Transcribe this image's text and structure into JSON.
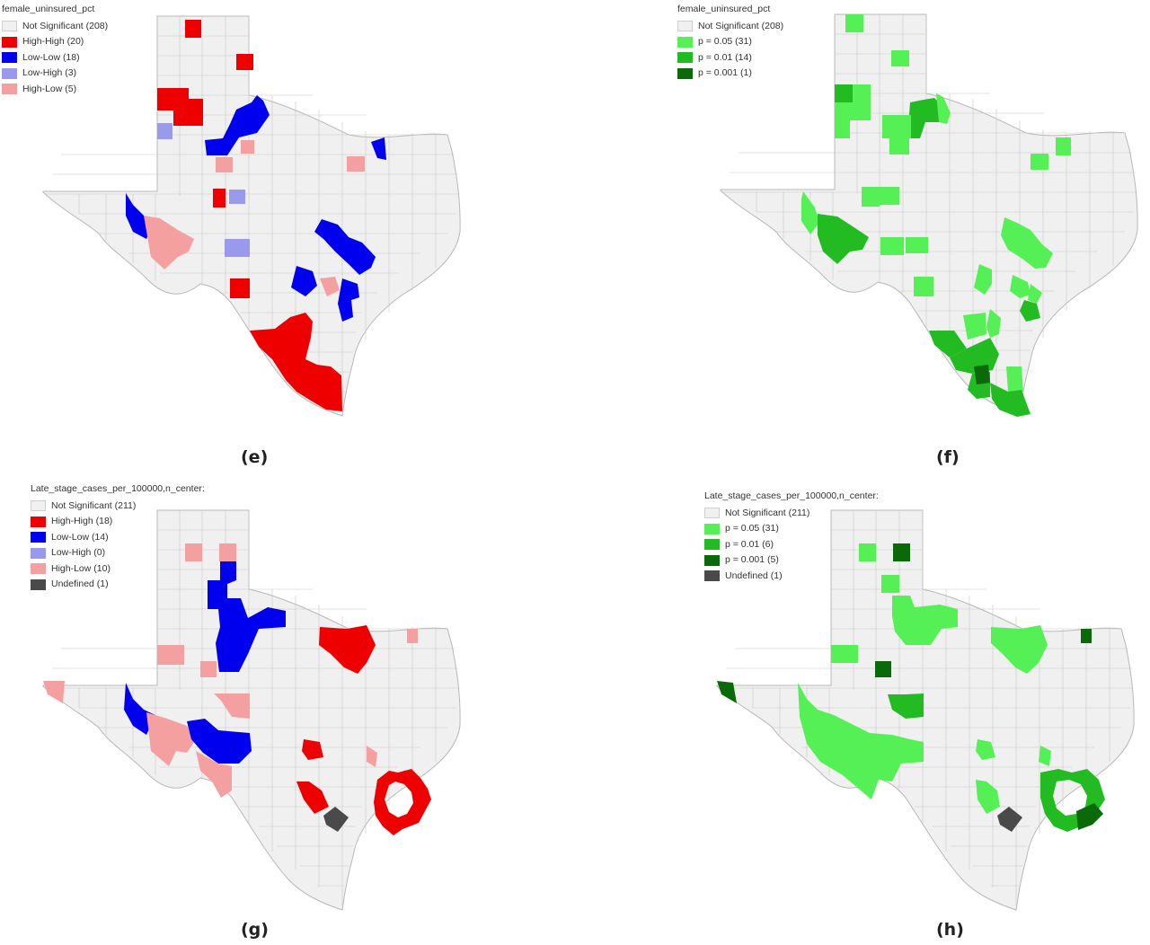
{
  "colors": {
    "not_significant": "#f0f0f0",
    "border": "#c8c8c8",
    "high_high": "#ee0000",
    "low_low": "#0000ee",
    "low_high": "#9999ee",
    "high_low": "#f4a0a0",
    "undefined": "#4a4a4a",
    "p05": "#55f055",
    "p01": "#22bb22",
    "p001": "#0a6a0a"
  },
  "panels": [
    {
      "id": "e",
      "label": "(e)",
      "type": "cluster",
      "legend_title": "female_uninsured_pct",
      "legend": [
        {
          "label": "Not Significant (208)",
          "color": "not_significant"
        },
        {
          "label": "High-High (20)",
          "color": "high_high"
        },
        {
          "label": "Low-Low (18)",
          "color": "low_low"
        },
        {
          "label": "Low-High (3)",
          "color": "low_high"
        },
        {
          "label": "High-Low (5)",
          "color": "high_low"
        }
      ]
    },
    {
      "id": "f",
      "label": "(f)",
      "type": "significance",
      "legend_title": "female_uninsured_pct",
      "legend": [
        {
          "label": "Not Significant (208)",
          "color": "not_significant"
        },
        {
          "label": "p = 0.05 (31)",
          "color": "p05"
        },
        {
          "label": "p = 0.01 (14)",
          "color": "p01"
        },
        {
          "label": "p = 0.001 (1)",
          "color": "p001"
        }
      ]
    },
    {
      "id": "g",
      "label": "(g)",
      "type": "cluster",
      "legend_title": "Late_stage_cases_per_100000,n_center:",
      "legend": [
        {
          "label": "Not Significant (211)",
          "color": "not_significant"
        },
        {
          "label": "High-High (18)",
          "color": "high_high"
        },
        {
          "label": "Low-Low (14)",
          "color": "low_low"
        },
        {
          "label": "Low-High (0)",
          "color": "low_high"
        },
        {
          "label": "High-Low (10)",
          "color": "high_low"
        },
        {
          "label": "Undefined (1)",
          "color": "undefined"
        }
      ]
    },
    {
      "id": "h",
      "label": "(h)",
      "type": "significance",
      "legend_title": "Late_stage_cases_per_100000,n_center:",
      "legend": [
        {
          "label": "Not Significant (211)",
          "color": "not_significant"
        },
        {
          "label": "p = 0.05 (31)",
          "color": "p05"
        },
        {
          "label": "p = 0.01 (6)",
          "color": "p01"
        },
        {
          "label": "p = 0.001 (5)",
          "color": "p001"
        },
        {
          "label": "Undefined (1)",
          "color": "undefined"
        }
      ]
    }
  ]
}
